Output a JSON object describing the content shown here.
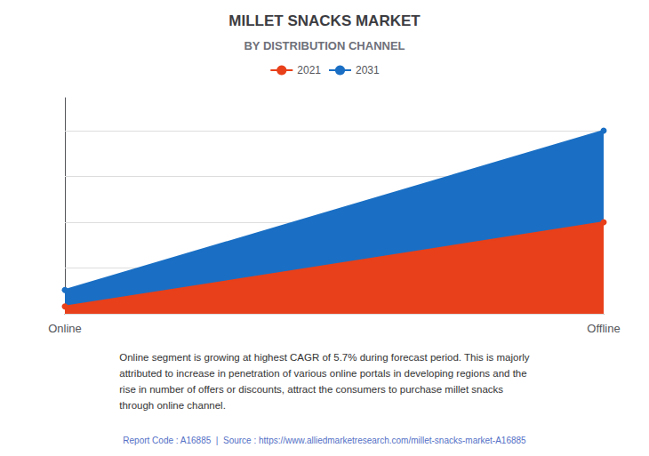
{
  "chart_data": {
    "type": "area",
    "title": "MILLET SNACKS MARKET",
    "subtitle": "BY DISTRIBUTION CHANNEL",
    "categories": [
      "Online",
      "Offline"
    ],
    "series": [
      {
        "name": "2021",
        "color": "#E8401A",
        "values": [
          0.04,
          0.5
        ]
      },
      {
        "name": "2031",
        "color": "#1A6FC4",
        "values": [
          0.13,
          1.0
        ]
      }
    ],
    "ylim": [
      0,
      1.18
    ],
    "yticks": [
      0,
      0.25,
      0.5,
      0.75,
      1.0
    ],
    "grid": true,
    "tick_labels": "x",
    "legend": "top",
    "marker": "circle",
    "annotation": "Online segment is growing at highest CAGR of 5.7% during forecast period. This is majorly\nattributed to increase in penetration of various online portals in developing regions and the\nrise in number of offers or discounts, attract the consumers to purchase millet snacks\nthrough online channel.",
    "source": "Report Code : A16885  |  Source : https://www.alliedmarketresearch.com/millet-snacks-market-A16885"
  }
}
